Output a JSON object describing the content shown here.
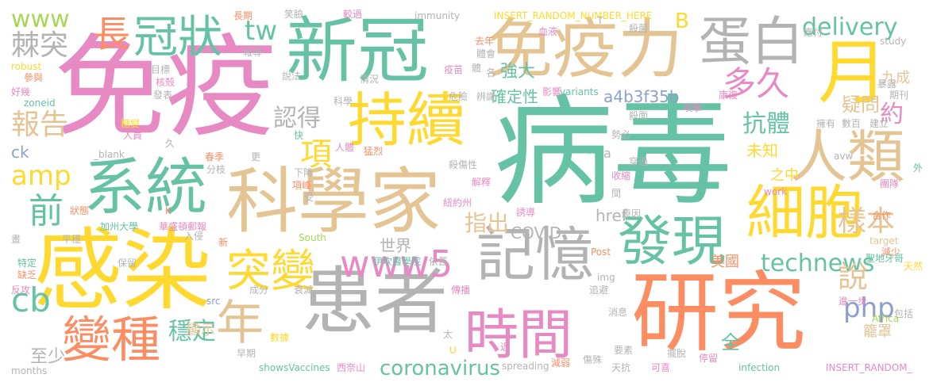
{
  "palette": {
    "green": "#66c2a5",
    "orange": "#fc8d62",
    "blue": "#8da0cb",
    "pink": "#e78ac3",
    "lime": "#a6d854",
    "yellow": "#ffd92f",
    "tan": "#e5c494",
    "gray": "#b3b3b3"
  },
  "words": [
    {
      "text": "病毒",
      "color": "green"
    },
    {
      "text": "免疫",
      "color": "pink"
    },
    {
      "text": "感染",
      "color": "yellow"
    },
    {
      "text": "研究",
      "color": "orange"
    },
    {
      "text": "科學家",
      "color": "tan"
    },
    {
      "text": "患者",
      "color": "gray"
    },
    {
      "text": "新冠",
      "color": "green"
    },
    {
      "text": "免疫力",
      "color": "tan"
    },
    {
      "text": "持續",
      "color": "yellow"
    },
    {
      "text": "系統",
      "color": "green"
    },
    {
      "text": "記憶",
      "color": "gray"
    },
    {
      "text": "時間",
      "color": "pink"
    },
    {
      "text": "細胞",
      "color": "yellow"
    },
    {
      "text": "發現",
      "color": "green"
    },
    {
      "text": "人類",
      "color": "tan"
    },
    {
      "text": "蛋白",
      "color": "gray"
    },
    {
      "text": "月",
      "color": "yellow"
    },
    {
      "text": "變種",
      "color": "orange"
    },
    {
      "text": "年",
      "color": "tan"
    },
    {
      "text": "突變",
      "color": "yellow"
    },
    {
      "text": "冠狀",
      "color": "green"
    },
    {
      "text": "www5",
      "color": "pink"
    },
    {
      "text": "technews",
      "color": "green"
    },
    {
      "text": "項",
      "color": "yellow"
    },
    {
      "text": "長",
      "color": "orange"
    },
    {
      "text": "多久",
      "color": "pink"
    },
    {
      "text": "delivery",
      "color": "green"
    },
    {
      "text": "樣本",
      "color": "tan"
    },
    {
      "text": "說",
      "color": "tan"
    },
    {
      "text": "amp",
      "color": "yellow"
    },
    {
      "text": "前",
      "color": "green"
    },
    {
      "text": "cb",
      "color": "green"
    },
    {
      "text": "php",
      "color": "blue"
    },
    {
      "text": "www",
      "color": "lime"
    },
    {
      "text": "棘突",
      "color": "gray"
    },
    {
      "text": "報告",
      "color": "tan"
    },
    {
      "text": "tw",
      "color": "green"
    },
    {
      "text": "認得",
      "color": "gray"
    },
    {
      "text": "抗體",
      "color": "green"
    },
    {
      "text": "約",
      "color": "pink"
    },
    {
      "text": "指出",
      "color": "tan"
    },
    {
      "text": "coronavirus",
      "color": "green"
    },
    {
      "text": "穩定",
      "color": "green"
    },
    {
      "text": "COVID",
      "color": "gray"
    },
    {
      "text": "a4b3f35b",
      "color": "blue"
    },
    {
      "text": "確定性",
      "color": "green"
    },
    {
      "text": "B",
      "color": "yellow"
    },
    {
      "text": "疑問",
      "color": "tan"
    },
    {
      "text": "九成",
      "color": "tan"
    },
    {
      "text": "未知",
      "color": "yellow"
    },
    {
      "text": "世界",
      "color": "gray"
    },
    {
      "text": "強大",
      "color": "green"
    },
    {
      "text": "籠罩",
      "color": "tan"
    },
    {
      "text": "美國",
      "color": "orange"
    },
    {
      "text": "顯示",
      "color": "tan"
    },
    {
      "text": "之中",
      "color": "yellow"
    },
    {
      "text": "href",
      "color": "gray"
    },
    {
      "text": "全",
      "color": "green"
    },
    {
      "text": "ck",
      "color": "blue"
    },
    {
      "text": "至少",
      "color": "gray"
    },
    {
      "text": "immunity",
      "color": "gray"
    },
    {
      "text": "INSERT_RANDOM_NUMBER_HERE",
      "color": "yellow"
    },
    {
      "text": "INSERT_RANDOM_",
      "color": "pink"
    },
    {
      "text": "variants",
      "color": "green"
    },
    {
      "text": "_blank",
      "color": "gray"
    },
    {
      "text": "spreading",
      "color": "gray"
    },
    {
      "text": "showsVaccines",
      "color": "green"
    },
    {
      "text": "infection",
      "color": "green"
    },
    {
      "text": "South",
      "color": "lime"
    },
    {
      "text": "Africa",
      "color": "lime"
    },
    {
      "text": "months",
      "color": "gray"
    },
    {
      "text": "robust",
      "color": "yellow"
    },
    {
      "text": "zoneid",
      "color": "green"
    },
    {
      "text": "study",
      "color": "gray"
    },
    {
      "text": "work",
      "color": "pink"
    },
    {
      "text": "target",
      "color": "tan"
    },
    {
      "text": "avw",
      "color": "gray"
    },
    {
      "text": "src",
      "color": "blue"
    },
    {
      "text": "img",
      "color": "gray"
    },
    {
      "text": "Post",
      "color": "orange"
    },
    {
      "text": "n",
      "color": "green"
    },
    {
      "text": "a",
      "color": "gray"
    },
    {
      "text": "T",
      "color": "gray"
    },
    {
      "text": "K",
      "color": "orange"
    },
    {
      "text": "U",
      "color": "yellow"
    },
    {
      "text": "長期",
      "color": "orange"
    },
    {
      "text": "笑臉",
      "color": "gray"
    },
    {
      "text": "較過",
      "color": "pink"
    },
    {
      "text": "殺菌",
      "color": "gray"
    },
    {
      "text": "應付",
      "color": "gray"
    },
    {
      "text": "血液",
      "color": "pink"
    },
    {
      "text": "去年",
      "color": "orange"
    },
    {
      "text": "體會",
      "color": "gray"
    },
    {
      "text": "報導",
      "color": "gray"
    },
    {
      "text": "參與",
      "color": "orange"
    },
    {
      "text": "目標",
      "color": "gray"
    },
    {
      "text": "核殼",
      "color": "pink"
    },
    {
      "text": "說法",
      "color": "gray"
    },
    {
      "text": "疫苗",
      "color": "pink"
    },
    {
      "text": "體",
      "color": "gray"
    },
    {
      "text": "名",
      "color": "gray"
    },
    {
      "text": "情況",
      "color": "gray"
    },
    {
      "text": "好幾",
      "color": "pink"
    },
    {
      "text": "發表",
      "color": "gray"
    },
    {
      "text": "科學",
      "color": "gray"
    },
    {
      "text": "危險",
      "color": "gray"
    },
    {
      "text": "辨識",
      "color": "gray"
    },
    {
      "text": "影響",
      "color": "pink"
    },
    {
      "text": "殺面",
      "color": "gray"
    },
    {
      "text": "建立",
      "color": "gray"
    },
    {
      "text": "擁有",
      "color": "gray"
    },
    {
      "text": "數百",
      "color": "gray"
    },
    {
      "text": "康復",
      "color": "pink"
    },
    {
      "text": "攻擊",
      "color": "pink"
    },
    {
      "text": "暴露",
      "color": "gray"
    },
    {
      "text": "期刊",
      "color": "gray"
    },
    {
      "text": "糖變",
      "color": "yellow"
    },
    {
      "text": "人員",
      "color": "pink"
    },
    {
      "text": "久",
      "color": "gray"
    },
    {
      "text": "勢必",
      "color": "gray"
    },
    {
      "text": "快",
      "color": "green"
    },
    {
      "text": "人體",
      "color": "pink"
    },
    {
      "text": "猛烈",
      "color": "orange"
    },
    {
      "text": "穿過",
      "color": "gray"
    },
    {
      "text": "春季",
      "color": "orange"
    },
    {
      "text": "收縮",
      "color": "pink"
    },
    {
      "text": "外",
      "color": "green"
    },
    {
      "text": "分枝",
      "color": "gray"
    },
    {
      "text": "更",
      "color": "gray"
    },
    {
      "text": "下降",
      "color": "gray"
    },
    {
      "text": "項峰",
      "color": "orange"
    },
    {
      "text": "殺傷性",
      "color": "gray"
    },
    {
      "text": "解釋",
      "color": "pink"
    },
    {
      "text": "團隊",
      "color": "pink"
    },
    {
      "text": "狀態",
      "color": "orange"
    },
    {
      "text": "受",
      "color": "gray"
    },
    {
      "text": "間",
      "color": "gray"
    },
    {
      "text": "紐約州",
      "color": "pink"
    },
    {
      "text": "誘導",
      "color": "pink"
    },
    {
      "text": "加州大學",
      "color": "green"
    },
    {
      "text": "原因",
      "color": "gray"
    },
    {
      "text": "合作",
      "color": "orange"
    },
    {
      "text": "華盛頓郵報",
      "color": "pink"
    },
    {
      "text": "入侵",
      "color": "gray"
    },
    {
      "text": "畫",
      "color": "gray"
    },
    {
      "text": "新",
      "color": "orange"
    },
    {
      "text": "平穩",
      "color": "gray"
    },
    {
      "text": "減少",
      "color": "orange"
    },
    {
      "text": "聖地牙哥",
      "color": "green"
    },
    {
      "text": "特定",
      "color": "green"
    },
    {
      "text": "保留",
      "color": "gray"
    },
    {
      "text": "伊坎醫學院",
      "color": "green"
    },
    {
      "text": "依舊",
      "color": "gray"
    },
    {
      "text": "天然",
      "color": "yellow"
    },
    {
      "text": "缺乏",
      "color": "orange"
    },
    {
      "text": "反攻",
      "color": "pink"
    },
    {
      "text": "成分",
      "color": "gray"
    },
    {
      "text": "衰減",
      "color": "gray"
    },
    {
      "text": "傳播",
      "color": "pink"
    },
    {
      "text": "追避",
      "color": "gray"
    },
    {
      "text": "進一步",
      "color": "pink"
    },
    {
      "text": "消息",
      "color": "gray"
    },
    {
      "text": "包括",
      "color": "gray"
    },
    {
      "text": "數據",
      "color": "yellow"
    },
    {
      "text": "太",
      "color": "gray"
    },
    {
      "text": "近",
      "color": "pink"
    },
    {
      "text": "要素",
      "color": "gray"
    },
    {
      "text": "擺脫",
      "color": "gray"
    },
    {
      "text": "早期",
      "color": "gray"
    },
    {
      "text": "西奈山",
      "color": "pink"
    },
    {
      "text": "減弱",
      "color": "orange"
    },
    {
      "text": "傷殊",
      "color": "gray"
    },
    {
      "text": "天抗",
      "color": "gray"
    },
    {
      "text": "停留",
      "color": "pink"
    },
    {
      "text": "可喜",
      "color": "pink"
    }
  ]
}
